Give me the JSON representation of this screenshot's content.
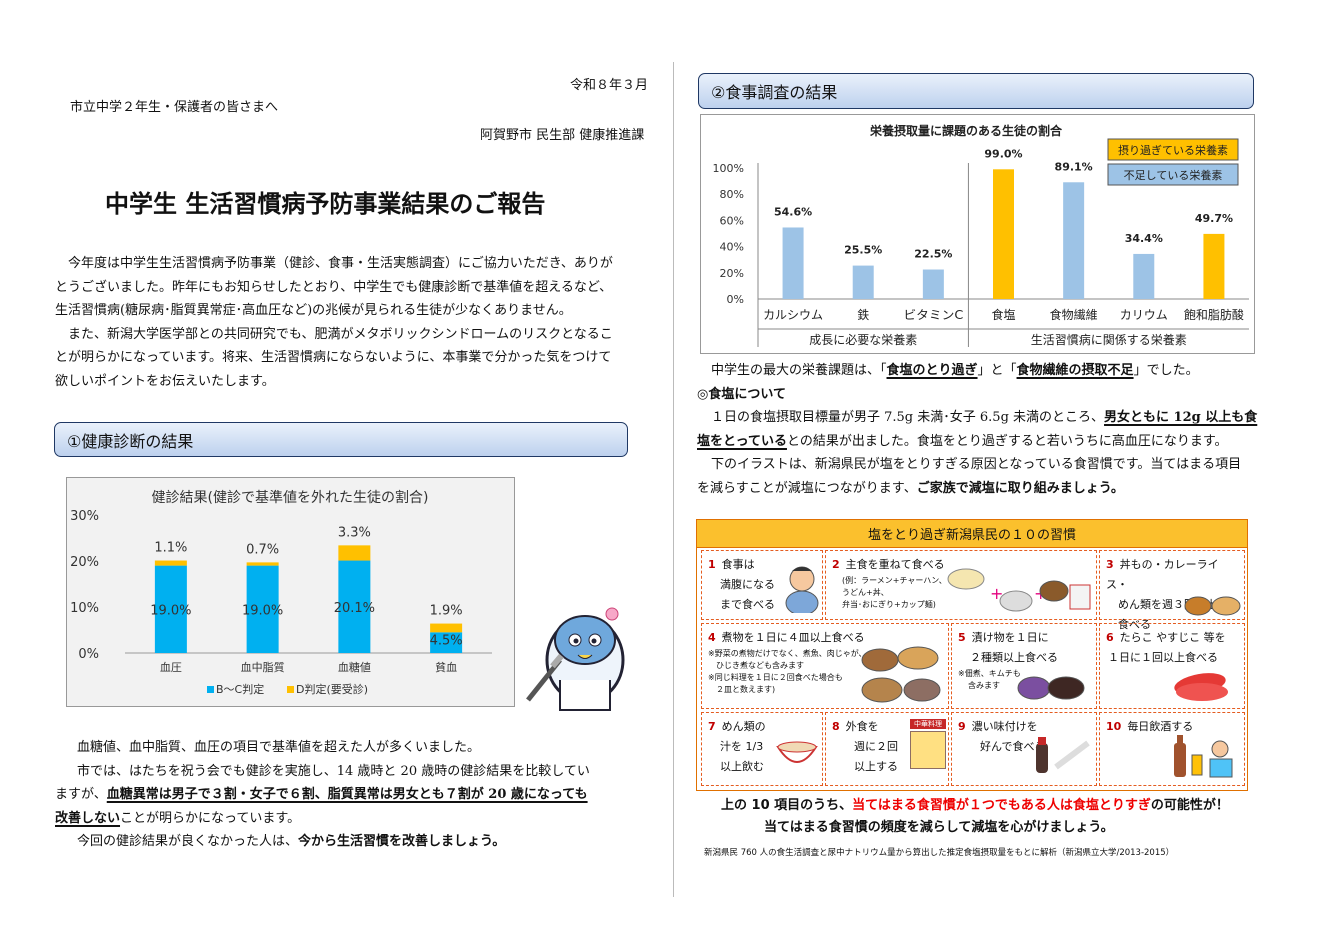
{
  "date": "令和８年３月",
  "recipient": "市立中学２年生・保護者の皆さまへ",
  "sender": "阿賀野市 民生部 健康推進課",
  "title": "中学生 生活習慣病予防事業結果のご報告",
  "intro": {
    "l1": "今年度は中学生生活習慣病予防事業（健診、食事・生活実態調査）にご協力いただき、ありが",
    "l2": "とうございました。昨年にもお知らせしたとおり、中学生でも健康診断で基準値を超えるなど、",
    "l3": "生活習慣病(糖尿病･脂質異常症･高血圧など)の兆候が見られる生徒が少なくありません。",
    "l4": "また、新潟大学医学部との共同研究でも、肥満がメタボリックシンドロームのリスクとなるこ",
    "l5": "とが明らかになっています。将来、生活習慣病にならないように、本事業で分かった気をつけて",
    "l6": "欲しいポイントをお伝えいたします。"
  },
  "section1": {
    "title": "①健康診断の結果"
  },
  "section2": {
    "title": "②食事調査の結果"
  },
  "chart_data": [
    {
      "type": "bar",
      "stacked": true,
      "title": "健診結果(健診で基準値を外れた生徒の割合)",
      "categories": [
        "血圧",
        "血中脂質",
        "血糖値",
        "貧血"
      ],
      "series": [
        {
          "name": "B～C判定",
          "values": [
            19.0,
            19.0,
            20.1,
            4.5
          ],
          "labels": [
            "19.0%",
            "19.0%",
            "20.1%",
            "4.5%"
          ],
          "color": "#00b0f0"
        },
        {
          "name": "D判定(要受診)",
          "values": [
            1.1,
            0.7,
            3.3,
            1.9
          ],
          "labels": [
            "1.1%",
            "0.7%",
            "3.3%",
            "1.9%"
          ],
          "color": "#ffc000"
        }
      ],
      "yticks": [
        "0%",
        "10%",
        "20%",
        "30%"
      ],
      "ylim": [
        0,
        30
      ],
      "legend": "bottom"
    },
    {
      "type": "bar",
      "title": "栄養摂取量に課題のある生徒の割合",
      "categories": [
        "カルシウム",
        "鉄",
        "ビタミンC",
        "食塩",
        "食物繊維",
        "カリウム",
        "飽和脂肪酸"
      ],
      "values": [
        54.6,
        25.5,
        22.5,
        99.0,
        89.1,
        34.4,
        49.7
      ],
      "labels": [
        "54.6%",
        "25.5%",
        "22.5%",
        "99.0%",
        "89.1%",
        "34.4%",
        "49.7%"
      ],
      "kinds": [
        "short",
        "short",
        "short",
        "over",
        "short",
        "short",
        "over"
      ],
      "groups": [
        {
          "label": "成長に必要な栄養素",
          "count": 3
        },
        {
          "label": "生活習慣病に関係する栄養素",
          "count": 4
        }
      ],
      "yticks": [
        "0%",
        "20%",
        "40%",
        "60%",
        "80%",
        "100%"
      ],
      "ylim": [
        0,
        100
      ],
      "legend_over": "摂り過ぎている栄養素",
      "legend_short": "不足している栄養素",
      "color_over": "#ffc000",
      "color_short": "#9dc3e6",
      "legend": "top-right"
    }
  ],
  "health_text": {
    "l1": "血糖値、血中脂質、血圧の項目で基準値を超えた人が多くいました。",
    "l2": "市では、はたちを祝う会でも健診を実施し、14 歳時と 20 歳時の健診結果を比較してい",
    "l3a": "ますが、",
    "l3b": "血糖異常は男子で３割・女子で６割、脂質異常は男女とも７割が 20 歳になっても",
    "l4a": "改善しない",
    "l4b": "ことが明らかになっています。",
    "l5a": "今回の健診結果が良くなかった人は、",
    "l5b": "今から生活習慣を改善しましょう。"
  },
  "diet_text": {
    "l1a": "中学生の最大の栄養課題は、「",
    "l1b": "食塩のとり過ぎ",
    "l1c": "」と「",
    "l1d": "食物繊維の摂取不足",
    "l1e": "」でした。",
    "salt_head": "◎食塩について",
    "l2a": "１日の食塩摂取目標量が男子 7.5g 未満･女子 6.5g 未満のところ、",
    "l2b": "男女ともに 12g 以上も食",
    "l3a": "塩をとっている",
    "l3b": "との結果が出ました。食塩をとり過ぎすると若いうちに高血圧になります。",
    "l4": "下のイラストは、新潟県民が塩をとりすぎる原因となっている食習慣です。当てはまる項目",
    "l5a": "を減らすことが減塩につながります、",
    "l5b": "ご家族で減塩に取り組みましょう。"
  },
  "habits": {
    "title": "塩をとり過ぎ新潟県民の１０の習慣",
    "items": [
      {
        "n": "1",
        "t1": "食事は",
        "t2": "満腹になる",
        "t3": "まで食べる"
      },
      {
        "n": "2",
        "t1": "主食を重ねて食べる",
        "s1": "(例：ラーメン+チャーハン、",
        "s2": "うどん+丼、",
        "s3": "弁当･おにぎり+カップ麺)"
      },
      {
        "n": "3",
        "t1": "丼もの・カレーライス・",
        "t2": "めん類を週３回以上",
        "t3": "食べる"
      },
      {
        "n": "4",
        "t1": "煮物を１日に４皿以上食べる",
        "s1": "※野菜の煮物だけでなく、煮魚、肉じゃが、",
        "s2": "ひじき煮なども含みます",
        "s3": "※同じ料理を１日に２回食べた場合も",
        "s4": "２皿と数えます)"
      },
      {
        "n": "5",
        "t1": "漬け物を１日に",
        "t2": "２種類以上食べる",
        "s1": "※佃煮、キムチも",
        "s2": "含みます"
      },
      {
        "n": "6",
        "t1": "たらこ やすじこ 等を",
        "t2": "１日に１回以上食べる"
      },
      {
        "n": "7",
        "t1": "めん類の",
        "t2": "汁を 1/3",
        "t3": "以上飲む"
      },
      {
        "n": "8",
        "t1": "外食を",
        "t2": "週に２回",
        "t3": "以上する"
      },
      {
        "n": "9",
        "t1": "濃い味付けを",
        "t2": "好んで食べる"
      },
      {
        "n": "10",
        "t1": "毎日飲酒する"
      }
    ],
    "sign_text": "中華料理"
  },
  "conclusion": {
    "l1a": "上の 10 項目のうち、",
    "l1b": "当てはまる食習慣が１つでもある人は食塩とりすぎ",
    "l1c": "の可能性が！",
    "l2": "当てはまる食習慣の頻度を減らして減塩を心がけましょう。"
  },
  "footnote": "新潟県民 760 人の食生活調査と尿中ナトリウム量から算出した推定食塩摂取量をもとに解析（新潟県立大学/2013-2015）"
}
